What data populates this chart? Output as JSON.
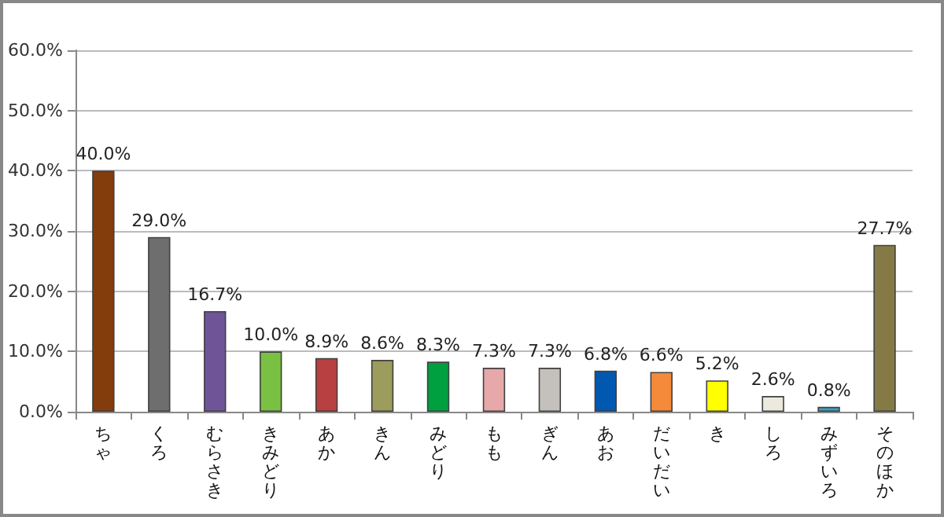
{
  "chart_data": {
    "type": "bar",
    "categories": [
      "ちゃ",
      "くろ",
      "むらさき",
      "きみどり",
      "あか",
      "きん",
      "みどり",
      "もも",
      "ぎん",
      "あお",
      "だいだい",
      "き",
      "しろ",
      "みずいろ",
      "そのほか"
    ],
    "values": [
      40,
      29,
      16.7,
      10,
      8.9,
      8.6,
      8.3,
      7.3,
      7.3,
      6.8,
      6.6,
      5.2,
      2.6,
      0.8,
      27.7
    ],
    "value_labels": [
      "40.0%",
      "29.0%",
      "16.7%",
      "10.0%",
      "8.9%",
      "8.6%",
      "8.3%",
      "7.3%",
      "7.3%",
      "6.8%",
      "6.6%",
      "5.2%",
      "2.6%",
      "0.8%",
      "27.7%"
    ],
    "colors": [
      "#833c0b",
      "#6e6e6e",
      "#6f5597",
      "#7ac143",
      "#b84040",
      "#9c9c5c",
      "#00a040",
      "#e6a8a8",
      "#c4c0bb",
      "#0058b0",
      "#f58a3a",
      "#ffff00",
      "#ece9de",
      "#3aa0c0",
      "#857a45"
    ],
    "ylim": [
      0,
      60
    ],
    "yticks": [
      {
        "value": 0,
        "label": "0.0%"
      },
      {
        "value": 10,
        "label": "10.0%"
      },
      {
        "value": 20,
        "label": "20.0%"
      },
      {
        "value": 30,
        "label": "30.0%"
      },
      {
        "value": 40,
        "label": "40.0%"
      },
      {
        "value": 50,
        "label": "50.0%"
      },
      {
        "value": 60,
        "label": "60.0%"
      }
    ],
    "grid": "y"
  }
}
